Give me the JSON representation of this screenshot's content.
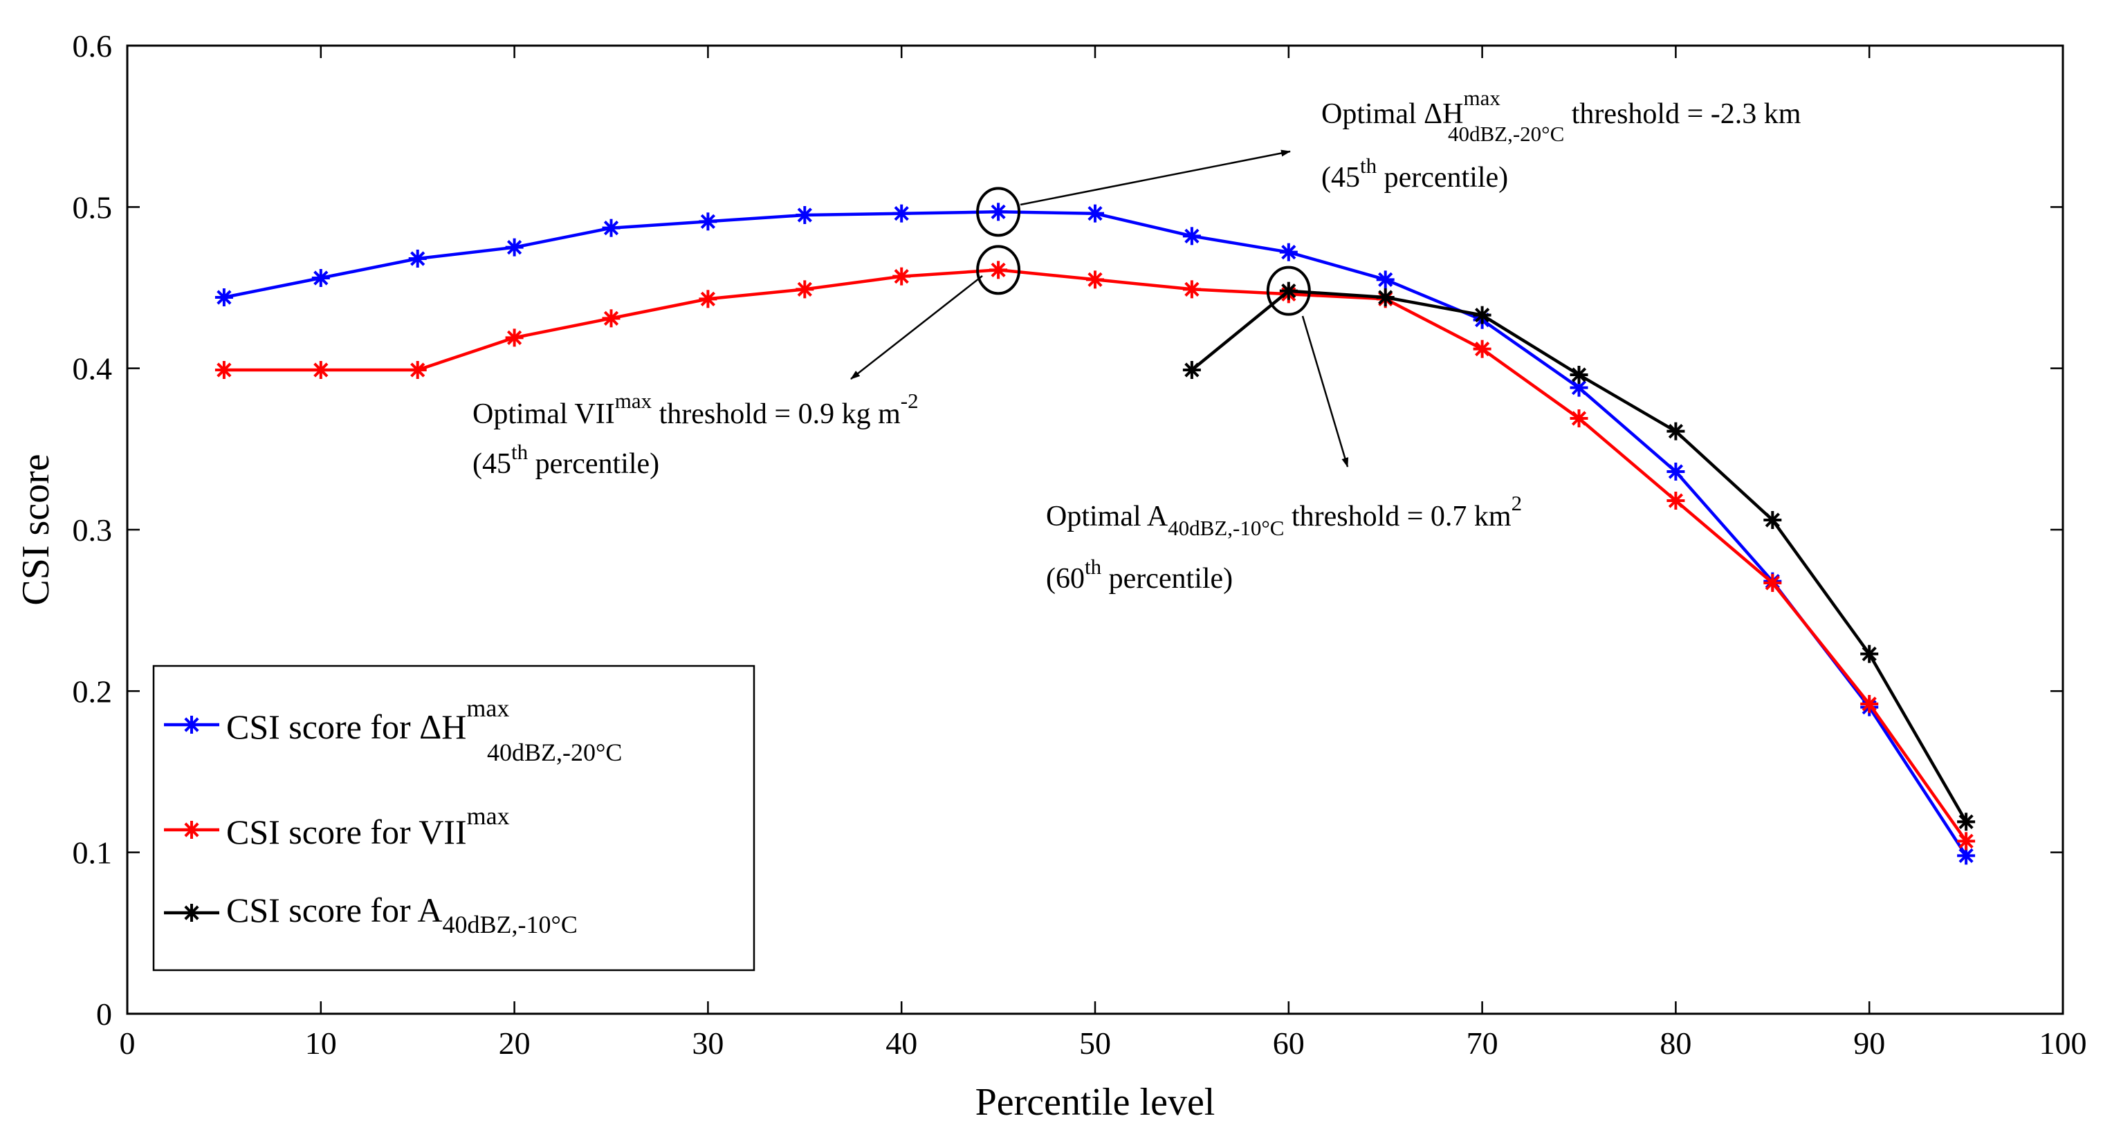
{
  "chart_data": {
    "type": "line",
    "xlabel": "Percentile level",
    "ylabel": "CSI score",
    "xlim": [
      0,
      100
    ],
    "ylim": [
      0,
      0.6
    ],
    "xticks": [
      "0",
      "10",
      "20",
      "30",
      "40",
      "50",
      "60",
      "70",
      "80",
      "90",
      "100"
    ],
    "yticks": [
      "0",
      "0.1",
      "0.2",
      "0.3",
      "0.4",
      "0.5",
      "0.6"
    ],
    "grid": false,
    "legend_position": "lower-left",
    "series": [
      {
        "name": "CSI score for ΔH",
        "name_sup": "max",
        "name_sub": "40dBZ,-20°C",
        "color": "#0000ff",
        "marker": "asterisk",
        "x": [
          5,
          10,
          15,
          20,
          25,
          30,
          35,
          40,
          45,
          50,
          55,
          60,
          65,
          70,
          75,
          80,
          85,
          90,
          95
        ],
        "y": [
          0.444,
          0.456,
          0.468,
          0.475,
          0.487,
          0.491,
          0.495,
          0.496,
          0.497,
          0.496,
          0.482,
          0.472,
          0.455,
          0.43,
          0.388,
          0.336,
          0.268,
          0.19,
          0.098
        ]
      },
      {
        "name": "CSI score for VII",
        "name_sup": "max",
        "name_sub": "",
        "color": "#ff0000",
        "marker": "asterisk",
        "x": [
          5,
          10,
          15,
          20,
          25,
          30,
          35,
          40,
          45,
          50,
          55,
          60,
          65,
          70,
          75,
          80,
          85,
          90,
          95
        ],
        "y": [
          0.399,
          0.399,
          0.399,
          0.419,
          0.431,
          0.443,
          0.449,
          0.457,
          0.461,
          0.455,
          0.449,
          0.446,
          0.443,
          0.412,
          0.369,
          0.318,
          0.267,
          0.192,
          0.107
        ]
      },
      {
        "name": "CSI score for A",
        "name_sup": "",
        "name_sub": "40dBZ,-10°C",
        "color": "#000000",
        "marker": "asterisk",
        "x": [
          55,
          60,
          65,
          70,
          75,
          80,
          85,
          90,
          95
        ],
        "y": [
          0.399,
          0.448,
          0.444,
          0.433,
          0.396,
          0.361,
          0.306,
          0.223,
          0.119
        ]
      }
    ],
    "annotations": [
      {
        "pre": "Optimal ΔH",
        "sup": "max",
        "sub": "40dBZ,-20°C",
        "post": " threshold = -2.3 km",
        "line2_pre": "(45",
        "line2_sup": "th",
        "line2_post": " percentile)",
        "circle_at": [
          45,
          0.497
        ]
      },
      {
        "pre": "Optimal VII",
        "sup": "max",
        "sub": "",
        "post": " threshold = 0.9 kg m",
        "post_sup": "-2",
        "line2_pre": "(45",
        "line2_sup": "th",
        "line2_post": " percentile)",
        "circle_at": [
          45,
          0.461
        ]
      },
      {
        "pre": "Optimal A",
        "sup": "",
        "sub": "40dBZ,-10°C",
        "post": " threshold = 0.7 km",
        "post_sup": "2",
        "line2_pre": "(60",
        "line2_sup": "th",
        "line2_post": " percentile)",
        "circle_at": [
          60,
          0.448
        ]
      }
    ]
  }
}
